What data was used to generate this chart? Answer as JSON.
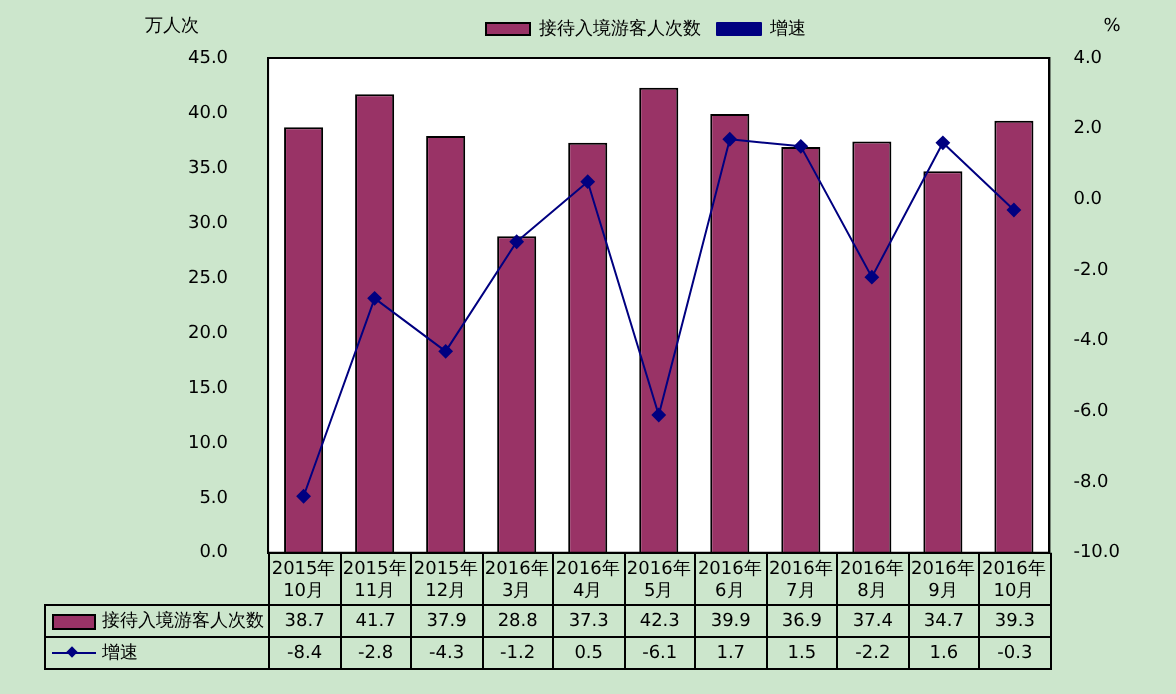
{
  "chart_data": {
    "type": "bar",
    "ylabel": "万人次",
    "y2label": "%",
    "categories": [
      "2015年10月",
      "2015年11月",
      "2015年12月",
      "2016年3月",
      "2016年4月",
      "2016年5月",
      "2016年6月",
      "2016年7月",
      "2016年8月",
      "2016年9月",
      "2016年10月"
    ],
    "series": [
      {
        "name": "接待入境游客人次数",
        "color": "#993366",
        "values": [
          38.7,
          41.7,
          37.9,
          28.8,
          37.3,
          42.3,
          39.9,
          36.9,
          37.4,
          34.7,
          39.3
        ]
      },
      {
        "name": "增速",
        "type": "line",
        "axis": "y2",
        "color": "#000080",
        "values": [
          -8.4,
          -2.8,
          -4.3,
          -1.2,
          0.5,
          -6.1,
          1.7,
          1.5,
          -2.2,
          1.6,
          -0.3
        ]
      }
    ],
    "ylim": [
      0,
      45
    ],
    "yticks": [
      {
        "value": 0,
        "label": "0.0"
      },
      {
        "value": 5,
        "label": "5.0"
      },
      {
        "value": 10,
        "label": "10.0"
      },
      {
        "value": 15,
        "label": "15.0"
      },
      {
        "value": 20,
        "label": "20.0"
      },
      {
        "value": 25,
        "label": "25.0"
      },
      {
        "value": 30,
        "label": "30.0"
      },
      {
        "value": 35,
        "label": "35.0"
      },
      {
        "value": 40,
        "label": "40.0"
      },
      {
        "value": 45,
        "label": "45.0"
      }
    ],
    "y2lim": [
      -10,
      4
    ],
    "y2ticks": [
      {
        "value": -10,
        "label": "-10.0"
      },
      {
        "value": -8,
        "label": "-8.0"
      },
      {
        "value": -6,
        "label": "-6.0"
      },
      {
        "value": -4,
        "label": "-4.0"
      },
      {
        "value": -2,
        "label": "-2.0"
      },
      {
        "value": 0,
        "label": "0.0"
      },
      {
        "value": 2,
        "label": "2.0"
      },
      {
        "value": 4,
        "label": "4.0"
      }
    ],
    "grid": false,
    "legend": "top",
    "marker": "diamond",
    "line_style": "solid",
    "data_labels": true
  }
}
